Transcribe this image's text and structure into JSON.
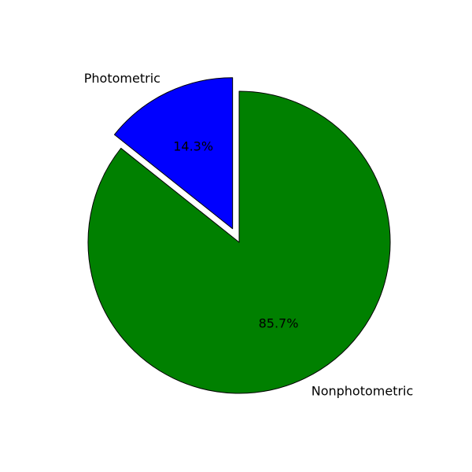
{
  "chart_data": {
    "type": "pie",
    "slices": [
      {
        "label": "Photometric",
        "value": 14.3,
        "pct_label": "14.3%",
        "color": "#0000ff",
        "exploded": true
      },
      {
        "label": "Nonphotometric",
        "value": 85.7,
        "pct_label": "85.7%",
        "color": "#008000",
        "exploded": false
      }
    ],
    "start_angle_deg": 90,
    "direction": "counterclockwise",
    "edge_color": "#000000"
  }
}
